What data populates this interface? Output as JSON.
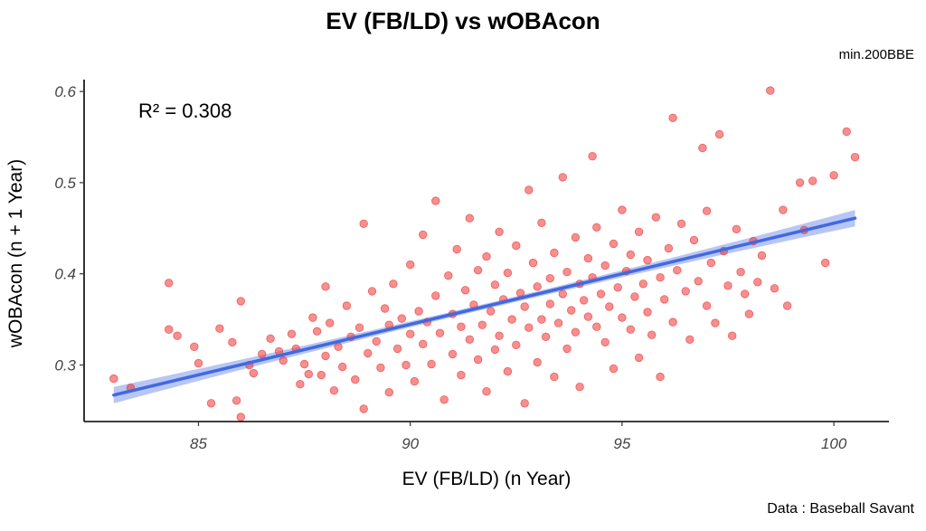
{
  "chart_data": {
    "type": "scatter",
    "title": "EV (FB/LD) vs wOBAcon",
    "subtitle": "min.200BBE",
    "caption": "Data : Baseball Savant",
    "xlabel": "EV (FB/LD) (n Year)",
    "ylabel": "wOBAcon (n + 1 Year)",
    "xlim": [
      82.3,
      101.3
    ],
    "ylim": [
      0.238,
      0.613
    ],
    "xticks": [
      85,
      90,
      95,
      100
    ],
    "xtick_labels": [
      "85",
      "90",
      "95",
      "100"
    ],
    "yticks": [
      0.3,
      0.4,
      0.5,
      0.6
    ],
    "ytick_labels": [
      "0.3",
      "0.4",
      "0.5",
      "0.6"
    ],
    "annotation": "R² = 0.308",
    "grid": false,
    "point_color": "#ee3333",
    "line_color": "#4169e1",
    "band_color": "#9fb3f0",
    "fit": {
      "x0": 83.0,
      "y0": 0.267,
      "x1": 100.5,
      "y1": 0.461
    },
    "band_halfwidth_ends": 0.009,
    "band_halfwidth_mid": 0.003,
    "points": [
      [
        83.0,
        0.285
      ],
      [
        83.4,
        0.275
      ],
      [
        84.3,
        0.39
      ],
      [
        84.3,
        0.339
      ],
      [
        84.5,
        0.332
      ],
      [
        84.9,
        0.32
      ],
      [
        85.0,
        0.302
      ],
      [
        85.3,
        0.258
      ],
      [
        85.5,
        0.34
      ],
      [
        85.8,
        0.325
      ],
      [
        85.9,
        0.261
      ],
      [
        86.0,
        0.243
      ],
      [
        86.0,
        0.37
      ],
      [
        86.2,
        0.3
      ],
      [
        86.3,
        0.291
      ],
      [
        86.5,
        0.312
      ],
      [
        86.7,
        0.329
      ],
      [
        86.9,
        0.315
      ],
      [
        87.0,
        0.305
      ],
      [
        87.2,
        0.334
      ],
      [
        87.3,
        0.318
      ],
      [
        87.4,
        0.279
      ],
      [
        87.5,
        0.301
      ],
      [
        87.6,
        0.29
      ],
      [
        87.7,
        0.352
      ],
      [
        87.8,
        0.337
      ],
      [
        87.9,
        0.289
      ],
      [
        88.0,
        0.31
      ],
      [
        88.0,
        0.386
      ],
      [
        88.1,
        0.346
      ],
      [
        88.2,
        0.272
      ],
      [
        88.3,
        0.32
      ],
      [
        88.4,
        0.298
      ],
      [
        88.5,
        0.365
      ],
      [
        88.6,
        0.331
      ],
      [
        88.7,
        0.284
      ],
      [
        88.8,
        0.341
      ],
      [
        88.9,
        0.455
      ],
      [
        88.9,
        0.252
      ],
      [
        89.0,
        0.313
      ],
      [
        89.1,
        0.381
      ],
      [
        89.2,
        0.326
      ],
      [
        89.3,
        0.297
      ],
      [
        89.4,
        0.362
      ],
      [
        89.5,
        0.344
      ],
      [
        89.5,
        0.27
      ],
      [
        89.6,
        0.389
      ],
      [
        89.7,
        0.318
      ],
      [
        89.8,
        0.351
      ],
      [
        89.9,
        0.3
      ],
      [
        90.0,
        0.334
      ],
      [
        90.0,
        0.41
      ],
      [
        90.1,
        0.282
      ],
      [
        90.2,
        0.359
      ],
      [
        90.3,
        0.323
      ],
      [
        90.3,
        0.443
      ],
      [
        90.4,
        0.347
      ],
      [
        90.5,
        0.301
      ],
      [
        90.6,
        0.376
      ],
      [
        90.6,
        0.48
      ],
      [
        90.7,
        0.335
      ],
      [
        90.8,
        0.262
      ],
      [
        90.9,
        0.398
      ],
      [
        91.0,
        0.356
      ],
      [
        91.0,
        0.312
      ],
      [
        91.1,
        0.427
      ],
      [
        91.2,
        0.342
      ],
      [
        91.2,
        0.289
      ],
      [
        91.3,
        0.382
      ],
      [
        91.4,
        0.328
      ],
      [
        91.4,
        0.461
      ],
      [
        91.5,
        0.366
      ],
      [
        91.6,
        0.306
      ],
      [
        91.6,
        0.404
      ],
      [
        91.7,
        0.344
      ],
      [
        91.8,
        0.271
      ],
      [
        91.8,
        0.419
      ],
      [
        91.9,
        0.359
      ],
      [
        92.0,
        0.317
      ],
      [
        92.0,
        0.388
      ],
      [
        92.1,
        0.446
      ],
      [
        92.1,
        0.332
      ],
      [
        92.2,
        0.372
      ],
      [
        92.3,
        0.293
      ],
      [
        92.3,
        0.401
      ],
      [
        92.4,
        0.35
      ],
      [
        92.5,
        0.431
      ],
      [
        92.5,
        0.322
      ],
      [
        92.6,
        0.379
      ],
      [
        92.7,
        0.258
      ],
      [
        92.7,
        0.364
      ],
      [
        92.8,
        0.492
      ],
      [
        92.8,
        0.341
      ],
      [
        92.9,
        0.412
      ],
      [
        93.0,
        0.303
      ],
      [
        93.0,
        0.386
      ],
      [
        93.1,
        0.35
      ],
      [
        93.1,
        0.456
      ],
      [
        93.2,
        0.331
      ],
      [
        93.3,
        0.395
      ],
      [
        93.3,
        0.367
      ],
      [
        93.4,
        0.287
      ],
      [
        93.4,
        0.423
      ],
      [
        93.5,
        0.346
      ],
      [
        93.6,
        0.378
      ],
      [
        93.6,
        0.506
      ],
      [
        93.7,
        0.318
      ],
      [
        93.7,
        0.402
      ],
      [
        93.8,
        0.36
      ],
      [
        93.9,
        0.44
      ],
      [
        93.9,
        0.336
      ],
      [
        94.0,
        0.389
      ],
      [
        94.0,
        0.276
      ],
      [
        94.1,
        0.371
      ],
      [
        94.2,
        0.417
      ],
      [
        94.2,
        0.353
      ],
      [
        94.3,
        0.529
      ],
      [
        94.3,
        0.396
      ],
      [
        94.4,
        0.342
      ],
      [
        94.4,
        0.451
      ],
      [
        94.5,
        0.378
      ],
      [
        94.6,
        0.409
      ],
      [
        94.6,
        0.325
      ],
      [
        94.7,
        0.364
      ],
      [
        94.8,
        0.433
      ],
      [
        94.8,
        0.296
      ],
      [
        94.9,
        0.385
      ],
      [
        95.0,
        0.352
      ],
      [
        95.0,
        0.47
      ],
      [
        95.1,
        0.403
      ],
      [
        95.2,
        0.339
      ],
      [
        95.2,
        0.421
      ],
      [
        95.3,
        0.375
      ],
      [
        95.4,
        0.308
      ],
      [
        95.4,
        0.446
      ],
      [
        95.5,
        0.389
      ],
      [
        95.6,
        0.358
      ],
      [
        95.6,
        0.415
      ],
      [
        95.7,
        0.333
      ],
      [
        95.8,
        0.462
      ],
      [
        95.9,
        0.396
      ],
      [
        95.9,
        0.287
      ],
      [
        96.0,
        0.372
      ],
      [
        96.1,
        0.428
      ],
      [
        96.2,
        0.571
      ],
      [
        96.2,
        0.347
      ],
      [
        96.3,
        0.404
      ],
      [
        96.4,
        0.455
      ],
      [
        96.5,
        0.381
      ],
      [
        96.6,
        0.328
      ],
      [
        96.7,
        0.437
      ],
      [
        96.8,
        0.392
      ],
      [
        96.9,
        0.538
      ],
      [
        97.0,
        0.365
      ],
      [
        97.0,
        0.469
      ],
      [
        97.1,
        0.412
      ],
      [
        97.2,
        0.346
      ],
      [
        97.3,
        0.553
      ],
      [
        97.4,
        0.425
      ],
      [
        97.5,
        0.387
      ],
      [
        97.6,
        0.332
      ],
      [
        97.7,
        0.449
      ],
      [
        97.8,
        0.402
      ],
      [
        97.9,
        0.378
      ],
      [
        98.0,
        0.356
      ],
      [
        98.1,
        0.436
      ],
      [
        98.2,
        0.391
      ],
      [
        98.3,
        0.42
      ],
      [
        98.5,
        0.601
      ],
      [
        98.6,
        0.384
      ],
      [
        98.8,
        0.47
      ],
      [
        98.9,
        0.365
      ],
      [
        99.2,
        0.5
      ],
      [
        99.3,
        0.448
      ],
      [
        99.5,
        0.502
      ],
      [
        99.8,
        0.412
      ],
      [
        100.0,
        0.508
      ],
      [
        100.3,
        0.556
      ],
      [
        100.5,
        0.528
      ]
    ]
  }
}
